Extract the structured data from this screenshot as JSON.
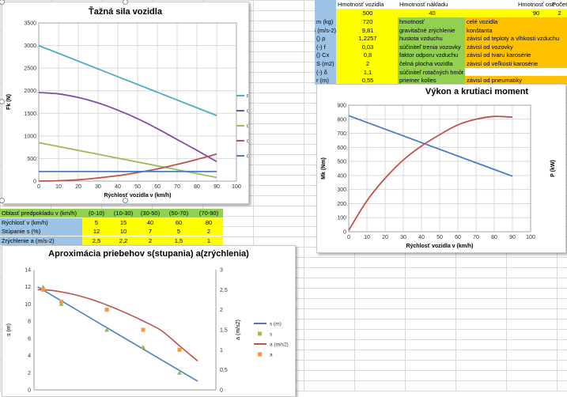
{
  "params_table": {
    "header": [
      "",
      "Hmotnosť vozidla",
      "Hmotnosť nákladu",
      "",
      "Hmotnosť osob",
      "Počet osôb"
    ],
    "header_values": [
      "500",
      "40",
      "90",
      "2"
    ],
    "rows": [
      {
        "param": "m (kg)",
        "value": "720",
        "name": "hmotnosť",
        "note": "celé vozidla"
      },
      {
        "param": "G (m/s-2)",
        "value": "9,81",
        "name": "gravitačné zrýchlenie",
        "note": "konštanta"
      },
      {
        "param": "ρ ()",
        "value": "1,2257",
        "name": "hustota vzduchu",
        "note": "závisí od teploty a vlhkosti vzduchu"
      },
      {
        "param": "f (-)",
        "value": "0,03",
        "name": "súčiniteľ trenia vozovky",
        "note": "závisí od vozovky"
      },
      {
        "param": "Cx ()",
        "value": "0,8",
        "name": "faktor odporu vzduchu",
        "note": "závisí od tvaru karosérie"
      },
      {
        "param": "S (m2)",
        "value": "2",
        "name": "čelná plocha vozidla",
        "note": "závisí od veľkosti karosérie"
      },
      {
        "param": "δ (-)",
        "value": "1,1",
        "name": "súčiniteľ rotačných hmôt",
        "note": ""
      },
      {
        "param": "r (m)",
        "value": "0,55",
        "name": "priemer kolies",
        "note": "závisí od pneumatiky"
      }
    ]
  },
  "estimate_table": {
    "header": [
      "Oblasť predpokladu v (km/h)",
      "(0-10)",
      "(10-30)",
      "(30-50)",
      "(50-70)",
      "(70-90)"
    ],
    "rows": [
      {
        "label": "Rýchlosť    v (km/h)",
        "values": [
          "5",
          "15",
          "40",
          "60",
          "80"
        ]
      },
      {
        "label": "Stúpanie    s (%)",
        "values": [
          "12",
          "10",
          "7",
          "5",
          "2"
        ]
      },
      {
        "label": "Zrýchlenie a (m/s-2)",
        "values": [
          "2,5",
          "2,2",
          "2",
          "1,5",
          "1"
        ]
      }
    ]
  },
  "colors": {
    "blue": "#4a7ec2",
    "purple": "#7e4fa3",
    "green": "#9bbb59",
    "red": "#c0504d",
    "teal": "#4bacc6",
    "yellow": "#ffff00",
    "orange": "#ffc000",
    "light_blue": "#9dc3e6",
    "light_green": "#92d050"
  },
  "chart_data": [
    {
      "type": "line",
      "title": "Ťažná sila vozidla",
      "xlabel": "Rýchlosť vozidla v (km/h)",
      "ylabel": "Fk (N)",
      "xlim": [
        0,
        100
      ],
      "ylim": [
        0,
        3500
      ],
      "xticks": [
        0,
        10,
        20,
        30,
        40,
        50,
        60,
        70,
        80,
        90,
        100
      ],
      "yticks": [
        0,
        500,
        1000,
        1500,
        2000,
        2500,
        3000,
        3500
      ],
      "legend_position": "right",
      "series": [
        {
          "name": "Fk (ťažná sila)",
          "color": "#4bacc6",
          "x": [
            0,
            90
          ],
          "y": [
            3000,
            1450
          ]
        },
        {
          "name": "Oz (zotrvačnosť)",
          "color": "#7e4fa3",
          "x": [
            0,
            10,
            20,
            30,
            40,
            50,
            60,
            70,
            80,
            90
          ],
          "y": [
            1960,
            1930,
            1850,
            1730,
            1570,
            1380,
            1160,
            920,
            680,
            430
          ]
        },
        {
          "name": "Os (stúpanie)",
          "color": "#9bbb59",
          "x": [
            0,
            90
          ],
          "y": [
            850,
            80
          ]
        },
        {
          "name": "Ov (vzduch)",
          "color": "#c0504d",
          "x": [
            0,
            10,
            20,
            30,
            40,
            50,
            60,
            70,
            80,
            90
          ],
          "y": [
            0,
            8,
            30,
            70,
            120,
            190,
            270,
            370,
            480,
            600
          ]
        },
        {
          "name": "Of (valenie)",
          "color": "#4a7ec2",
          "x": [
            0,
            90
          ],
          "y": [
            212,
            212
          ]
        }
      ]
    },
    {
      "type": "line",
      "title": "Výkon a krutiaci moment",
      "xlabel": "Rýchlosť vozidla v (km/h)",
      "ylabel": "Mk (Nm)",
      "y2label": "P (kW)",
      "xlim": [
        0,
        100
      ],
      "ylim": [
        0,
        900
      ],
      "xticks": [
        0,
        10,
        20,
        30,
        40,
        50,
        60,
        70,
        80,
        90,
        100
      ],
      "yticks": [
        0,
        100,
        200,
        300,
        400,
        500,
        600,
        700,
        800,
        900
      ],
      "series": [
        {
          "name": "Mk",
          "color": "#4a7ec2",
          "x": [
            0,
            90
          ],
          "y": [
            825,
            395
          ]
        },
        {
          "name": "P",
          "color": "#c0504d",
          "x": [
            0,
            10,
            20,
            30,
            40,
            50,
            60,
            70,
            80,
            90
          ],
          "y": [
            10,
            220,
            380,
            510,
            610,
            690,
            760,
            800,
            820,
            815
          ]
        }
      ]
    },
    {
      "type": "line",
      "title": "Aproximácia priebehov s(stupania) a(zrýchlenia)",
      "ylabel": "s (m)",
      "y2label": "a (m/s2)",
      "xlim": [
        0,
        100
      ],
      "ylim": [
        0,
        14
      ],
      "y2lim": [
        0,
        3
      ],
      "yticks": [
        0,
        2,
        4,
        6,
        8,
        10,
        12,
        14
      ],
      "y2ticks": [
        0,
        0.5,
        1,
        1.5,
        2,
        2.5,
        3
      ],
      "y2ticklabels": [
        "0",
        "0,5",
        "1",
        "1,5",
        "2",
        "2,5",
        "3"
      ],
      "legend_position": "right",
      "series": [
        {
          "name": "s (m)",
          "kind": "line",
          "axis": "left",
          "color": "#4a7ec2",
          "x": [
            2,
            90
          ],
          "y": [
            12,
            1
          ]
        },
        {
          "name": "s",
          "kind": "points",
          "axis": "left",
          "color": "#9bbb59",
          "x": [
            5,
            15,
            40,
            60,
            80
          ],
          "y": [
            12,
            10,
            7,
            5,
            2
          ]
        },
        {
          "name": "a (m/s2)",
          "kind": "line",
          "axis": "right",
          "color": "#c0504d",
          "x": [
            2,
            10,
            20,
            30,
            40,
            50,
            60,
            70,
            80,
            90
          ],
          "y": [
            2.5,
            2.48,
            2.4,
            2.28,
            2.12,
            1.93,
            1.72,
            1.48,
            1.1,
            0.72
          ]
        },
        {
          "name": "a",
          "kind": "points",
          "axis": "right",
          "color": "#f79646",
          "x": [
            5,
            15,
            40,
            60,
            80
          ],
          "y": [
            2.5,
            2.2,
            2,
            1.5,
            1
          ]
        }
      ]
    }
  ]
}
